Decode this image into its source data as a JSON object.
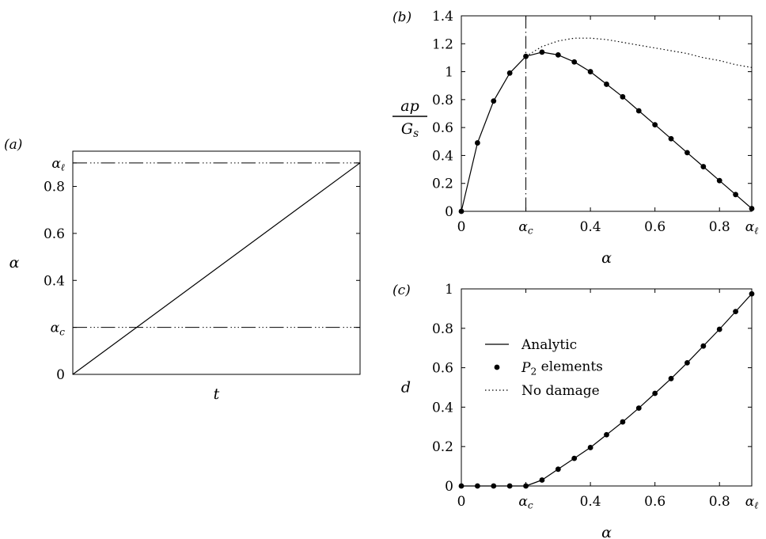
{
  "chart_data": [
    {
      "panel_label": "(a)",
      "type": "line",
      "xlabel": "t",
      "ylabel": "α",
      "ylim": [
        0,
        0.95
      ],
      "y_ticks": [
        {
          "value": 0,
          "label": "0"
        },
        {
          "value": 0.2,
          "label": "α_c"
        },
        {
          "value": 0.4,
          "label": "0.4"
        },
        {
          "value": 0.6,
          "label": "0.6"
        },
        {
          "value": 0.8,
          "label": "0.8"
        },
        {
          "value": 0.9,
          "label": "α_ℓ"
        }
      ],
      "series": [
        {
          "style": "solid",
          "x": [
            0,
            1
          ],
          "y": [
            0,
            0.9
          ]
        }
      ],
      "reference_lines": [
        {
          "axis": "y",
          "value": 0.2,
          "style": "dash-dot-dot"
        },
        {
          "axis": "y",
          "value": 0.9,
          "style": "dash-dot-dot"
        }
      ]
    },
    {
      "panel_label": "(b)",
      "type": "line",
      "xlabel": "α",
      "ylabel_num": "ap",
      "ylabel_den": "G_s",
      "xlim": [
        0,
        0.9
      ],
      "ylim": [
        0,
        1.4
      ],
      "x_ticks": [
        {
          "value": 0,
          "label": "0"
        },
        {
          "value": 0.2,
          "label": "α_c"
        },
        {
          "value": 0.4,
          "label": "0.4"
        },
        {
          "value": 0.6,
          "label": "0.6"
        },
        {
          "value": 0.8,
          "label": "0.8"
        },
        {
          "value": 0.9,
          "label": "α_ℓ"
        }
      ],
      "y_ticks": [
        0,
        0.2,
        0.4,
        0.6,
        0.8,
        1,
        1.2,
        1.4
      ],
      "reference_lines": [
        {
          "axis": "x",
          "value": 0.2,
          "style": "dash-dot"
        }
      ],
      "series": [
        {
          "name": "Analytic",
          "style": "solid",
          "x": [
            0,
            0.05,
            0.1,
            0.15,
            0.2,
            0.25,
            0.3,
            0.35,
            0.4,
            0.45,
            0.5,
            0.55,
            0.6,
            0.65,
            0.7,
            0.75,
            0.8,
            0.85,
            0.9
          ],
          "y": [
            0,
            0.49,
            0.79,
            0.99,
            1.11,
            1.14,
            1.12,
            1.07,
            1.0,
            0.91,
            0.82,
            0.72,
            0.62,
            0.52,
            0.42,
            0.32,
            0.22,
            0.12,
            0.02
          ]
        },
        {
          "name": "P_2 elements",
          "style": "markers",
          "x": [
            0,
            0.05,
            0.1,
            0.15,
            0.2,
            0.25,
            0.3,
            0.35,
            0.4,
            0.45,
            0.5,
            0.55,
            0.6,
            0.65,
            0.7,
            0.75,
            0.8,
            0.85,
            0.9
          ],
          "y": [
            0,
            0.49,
            0.79,
            0.99,
            1.11,
            1.14,
            1.12,
            1.07,
            1.0,
            0.91,
            0.82,
            0.72,
            0.62,
            0.52,
            0.42,
            0.32,
            0.22,
            0.12,
            0.02
          ]
        },
        {
          "name": "No damage",
          "style": "dotted",
          "x": [
            0.2,
            0.25,
            0.3,
            0.35,
            0.4,
            0.45,
            0.5,
            0.55,
            0.6,
            0.65,
            0.7,
            0.75,
            0.8,
            0.85,
            0.9
          ],
          "y": [
            1.11,
            1.18,
            1.22,
            1.24,
            1.24,
            1.23,
            1.21,
            1.19,
            1.17,
            1.15,
            1.13,
            1.1,
            1.08,
            1.05,
            1.03
          ]
        }
      ]
    },
    {
      "panel_label": "(c)",
      "type": "line",
      "xlabel": "α",
      "ylabel": "d",
      "xlim": [
        0,
        0.9
      ],
      "ylim": [
        0,
        1
      ],
      "x_ticks": [
        {
          "value": 0,
          "label": "0"
        },
        {
          "value": 0.2,
          "label": "α_c"
        },
        {
          "value": 0.4,
          "label": "0.4"
        },
        {
          "value": 0.6,
          "label": "0.6"
        },
        {
          "value": 0.8,
          "label": "0.8"
        },
        {
          "value": 0.9,
          "label": "α_ℓ"
        }
      ],
      "y_ticks": [
        0,
        0.2,
        0.4,
        0.6,
        0.8,
        1
      ],
      "legend": {
        "position": "middle-left",
        "entries": [
          {
            "label": "Analytic",
            "style": "solid"
          },
          {
            "label": "P_2 elements",
            "style": "markers"
          },
          {
            "label": "No damage",
            "style": "dotted"
          }
        ]
      },
      "series": [
        {
          "name": "Analytic",
          "style": "solid",
          "x": [
            0,
            0.05,
            0.1,
            0.15,
            0.2,
            0.25,
            0.3,
            0.35,
            0.4,
            0.45,
            0.5,
            0.55,
            0.6,
            0.65,
            0.7,
            0.75,
            0.8,
            0.85,
            0.9
          ],
          "y": [
            0,
            0,
            0,
            0,
            0,
            0.03,
            0.085,
            0.14,
            0.195,
            0.26,
            0.325,
            0.395,
            0.47,
            0.545,
            0.625,
            0.71,
            0.795,
            0.885,
            0.975
          ]
        },
        {
          "name": "P_2 elements",
          "style": "markers",
          "x": [
            0,
            0.05,
            0.1,
            0.15,
            0.2,
            0.25,
            0.3,
            0.35,
            0.4,
            0.45,
            0.5,
            0.55,
            0.6,
            0.65,
            0.7,
            0.75,
            0.8,
            0.85,
            0.9
          ],
          "y": [
            0,
            0,
            0,
            0,
            0,
            0.03,
            0.085,
            0.14,
            0.195,
            0.26,
            0.325,
            0.395,
            0.47,
            0.545,
            0.625,
            0.71,
            0.795,
            0.885,
            0.975
          ]
        }
      ]
    }
  ]
}
